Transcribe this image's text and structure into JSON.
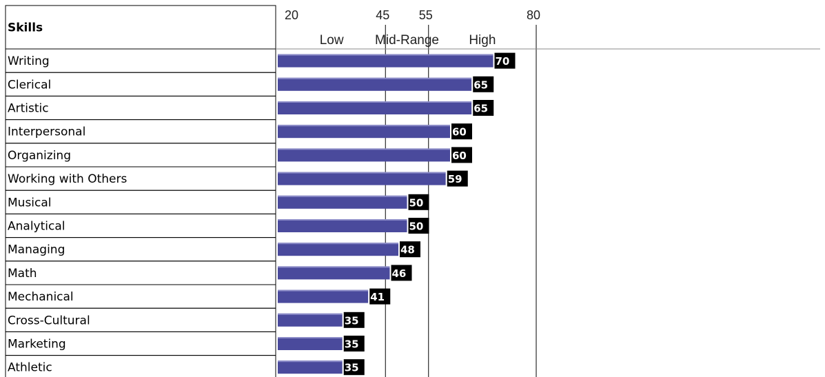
{
  "colors": {
    "bar": "#4a4a9c",
    "bar_highlight": "#8c8cc8",
    "value_bg": "#000000",
    "grid": "#000000"
  },
  "chart_data": {
    "type": "bar",
    "orientation": "horizontal",
    "header_label": "Skills",
    "x_ticks": [
      20,
      45,
      55,
      80
    ],
    "bands": [
      "Low",
      "Mid-Range",
      "High"
    ],
    "categories": [
      "Writing",
      "Clerical",
      "Artistic",
      "Interpersonal",
      "Organizing",
      "Working with Others",
      "Musical",
      "Analytical",
      "Managing",
      "Math",
      "Mechanical",
      "Cross-Cultural",
      "Marketing",
      "Athletic"
    ],
    "values": [
      70,
      65,
      65,
      60,
      60,
      59,
      50,
      50,
      48,
      46,
      41,
      35,
      35,
      35
    ],
    "xlim": [
      20,
      80
    ],
    "grid": true
  }
}
